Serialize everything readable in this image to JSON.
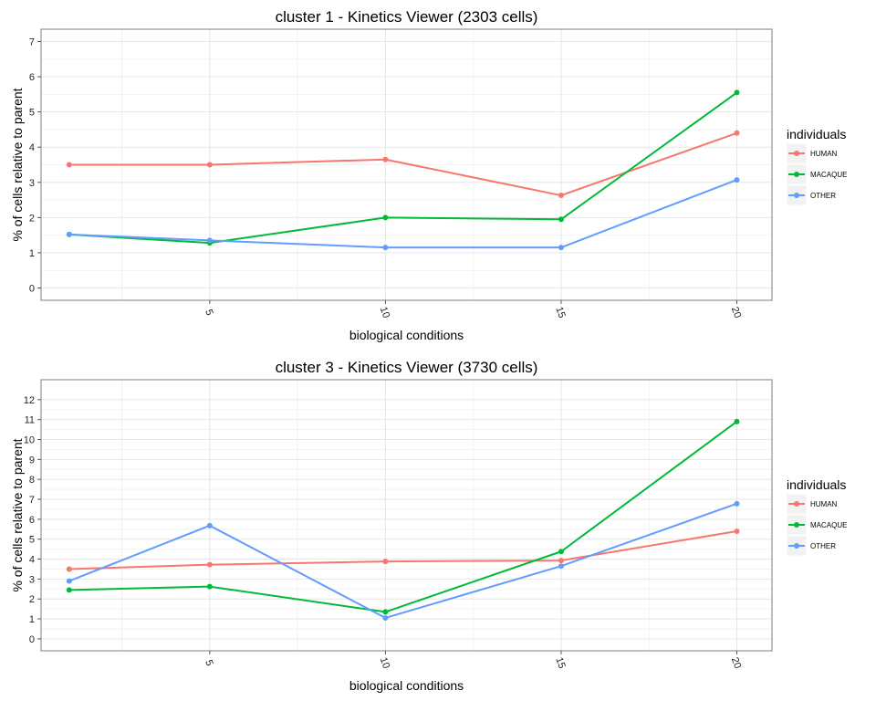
{
  "chart_data": [
    {
      "type": "line",
      "title": "cluster 1 - Kinetics Viewer (2303 cells)",
      "xlabel": "biological conditions",
      "ylabel": "% of cells relative to parent",
      "xlim": [
        0.2,
        21.0
      ],
      "ylim": [
        -0.35,
        7.35
      ],
      "x_ticks": [
        5,
        10,
        15,
        20
      ],
      "x_tick_labels": [
        "5",
        "10",
        "15",
        "20"
      ],
      "y_ticks": [
        0,
        1,
        2,
        3,
        4,
        5,
        6,
        7
      ],
      "y_tick_labels": [
        "0",
        "1",
        "2",
        "3",
        "4",
        "5",
        "6",
        "7"
      ],
      "grid": true,
      "legend": {
        "title": "individuals",
        "position": "right"
      },
      "x": [
        1,
        5,
        10,
        15,
        20
      ],
      "series": [
        {
          "name": "HUMAN",
          "color": "#F8766D",
          "values": [
            3.5,
            3.5,
            3.65,
            2.63,
            4.4
          ]
        },
        {
          "name": "MACAQUE",
          "color": "#00BA38",
          "values": [
            1.52,
            1.28,
            2.0,
            1.95,
            5.55
          ]
        },
        {
          "name": "OTHER",
          "color": "#619CFF",
          "values": [
            1.52,
            1.35,
            1.15,
            1.15,
            3.07
          ]
        }
      ]
    },
    {
      "type": "line",
      "title": "cluster 3 - Kinetics Viewer (3730 cells)",
      "xlabel": "biological conditions",
      "ylabel": "% of cells relative to parent",
      "xlim": [
        0.2,
        21.0
      ],
      "ylim": [
        -0.6,
        13.0
      ],
      "x_ticks": [
        5,
        10,
        15,
        20
      ],
      "x_tick_labels": [
        "5",
        "10",
        "15",
        "20"
      ],
      "y_ticks": [
        0,
        1,
        2,
        3,
        4,
        5,
        6,
        7,
        8,
        9,
        10,
        11,
        12
      ],
      "y_tick_labels": [
        "0",
        "1",
        "2",
        "3",
        "4",
        "5",
        "6",
        "7",
        "8",
        "9",
        "10",
        "11",
        "12"
      ],
      "grid": true,
      "legend": {
        "title": "individuals",
        "position": "right"
      },
      "x": [
        1,
        5,
        10,
        15,
        20
      ],
      "series": [
        {
          "name": "HUMAN",
          "color": "#F8766D",
          "values": [
            3.5,
            3.72,
            3.88,
            3.93,
            5.4
          ]
        },
        {
          "name": "MACAQUE",
          "color": "#00BA38",
          "values": [
            2.45,
            2.62,
            1.35,
            4.38,
            10.9
          ]
        },
        {
          "name": "OTHER",
          "color": "#619CFF",
          "values": [
            2.9,
            5.68,
            1.05,
            3.65,
            6.78
          ]
        }
      ]
    }
  ]
}
